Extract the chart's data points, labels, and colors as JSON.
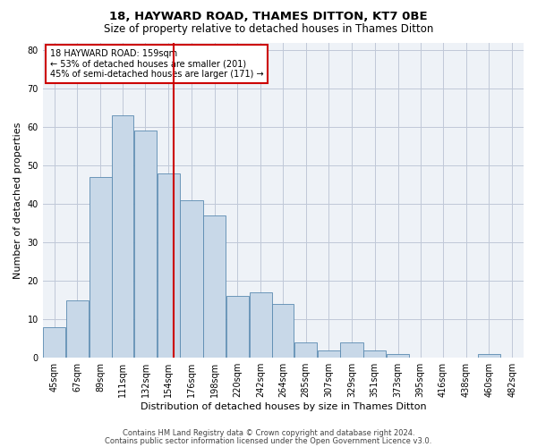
{
  "title1": "18, HAYWARD ROAD, THAMES DITTON, KT7 0BE",
  "title2": "Size of property relative to detached houses in Thames Ditton",
  "xlabel": "Distribution of detached houses by size in Thames Ditton",
  "ylabel": "Number of detached properties",
  "footer1": "Contains HM Land Registry data © Crown copyright and database right 2024.",
  "footer2": "Contains public sector information licensed under the Open Government Licence v3.0.",
  "annotation_line1": "18 HAYWARD ROAD: 159sqm",
  "annotation_line2": "← 53% of detached houses are smaller (201)",
  "annotation_line3": "45% of semi-detached houses are larger (171) →",
  "bar_categories": [
    "45sqm",
    "67sqm",
    "89sqm",
    "111sqm",
    "132sqm",
    "154sqm",
    "176sqm",
    "198sqm",
    "220sqm",
    "242sqm",
    "264sqm",
    "285sqm",
    "307sqm",
    "329sqm",
    "351sqm",
    "373sqm",
    "395sqm",
    "416sqm",
    "438sqm",
    "460sqm",
    "482sqm"
  ],
  "bar_heights": [
    8,
    15,
    47,
    63,
    59,
    48,
    41,
    37,
    16,
    17,
    14,
    4,
    2,
    4,
    2,
    1,
    0,
    0,
    0,
    1,
    0
  ],
  "bin_edges": [
    34,
    56,
    78,
    100,
    121,
    143,
    165,
    187,
    209,
    231,
    253,
    274,
    296,
    318,
    340,
    362,
    384,
    405,
    427,
    449,
    471,
    493
  ],
  "bar_color": "#c8d8e8",
  "bar_edge_color": "#5a8ab0",
  "vline_x": 159,
  "vline_color": "#cc0000",
  "grid_color": "#c0c8d8",
  "background_color": "#eef2f7",
  "ylim": [
    0,
    82
  ],
  "yticks": [
    0,
    10,
    20,
    30,
    40,
    50,
    60,
    70,
    80
  ],
  "annotation_box_color": "#cc0000",
  "title1_fontsize": 9.5,
  "title2_fontsize": 8.5,
  "xlabel_fontsize": 8,
  "ylabel_fontsize": 8,
  "tick_fontsize": 7,
  "annotation_fontsize": 7,
  "footer_fontsize": 6
}
